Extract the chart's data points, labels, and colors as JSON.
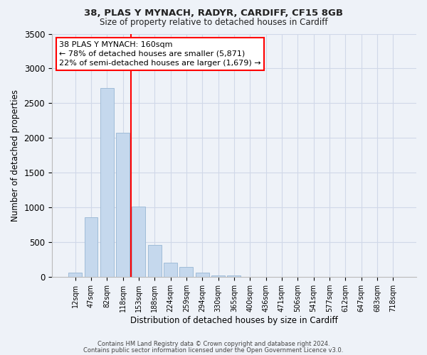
{
  "title1": "38, PLAS Y MYNACH, RADYR, CARDIFF, CF15 8GB",
  "title2": "Size of property relative to detached houses in Cardiff",
  "xlabel": "Distribution of detached houses by size in Cardiff",
  "ylabel": "Number of detached properties",
  "bar_labels": [
    "12sqm",
    "47sqm",
    "82sqm",
    "118sqm",
    "153sqm",
    "188sqm",
    "224sqm",
    "259sqm",
    "294sqm",
    "330sqm",
    "365sqm",
    "400sqm",
    "436sqm",
    "471sqm",
    "506sqm",
    "541sqm",
    "577sqm",
    "612sqm",
    "647sqm",
    "683sqm",
    "718sqm"
  ],
  "bar_values": [
    55,
    855,
    2720,
    2075,
    1010,
    455,
    205,
    145,
    55,
    15,
    20,
    0,
    0,
    0,
    0,
    0,
    0,
    0,
    0,
    0,
    0
  ],
  "bar_color": "#c5d8ed",
  "bar_edge_color": "#a0bcd8",
  "subject_line_color": "red",
  "annotation_text": "38 PLAS Y MYNACH: 160sqm\n← 78% of detached houses are smaller (5,871)\n22% of semi-detached houses are larger (1,679) →",
  "annotation_box_color": "white",
  "annotation_box_edge_color": "red",
  "ylim": [
    0,
    3500
  ],
  "yticks": [
    0,
    500,
    1000,
    1500,
    2000,
    2500,
    3000,
    3500
  ],
  "grid_color": "#d0d8e8",
  "background_color": "#eef2f8",
  "plot_bg_color": "#eef2f8",
  "footer1": "Contains HM Land Registry data © Crown copyright and database right 2024.",
  "footer2": "Contains public sector information licensed under the Open Government Licence v3.0."
}
